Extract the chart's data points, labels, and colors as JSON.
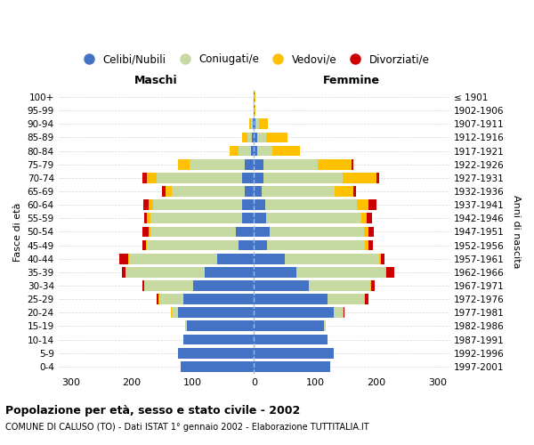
{
  "age_groups": [
    "0-4",
    "5-9",
    "10-14",
    "15-19",
    "20-24",
    "25-29",
    "30-34",
    "35-39",
    "40-44",
    "45-49",
    "50-54",
    "55-59",
    "60-64",
    "65-69",
    "70-74",
    "75-79",
    "80-84",
    "85-89",
    "90-94",
    "95-99",
    "100+"
  ],
  "birth_years": [
    "1997-2001",
    "1992-1996",
    "1987-1991",
    "1982-1986",
    "1977-1981",
    "1972-1976",
    "1967-1971",
    "1962-1966",
    "1957-1961",
    "1952-1956",
    "1947-1951",
    "1942-1946",
    "1937-1941",
    "1932-1936",
    "1927-1931",
    "1922-1926",
    "1917-1921",
    "1912-1916",
    "1907-1911",
    "1902-1906",
    "≤ 1901"
  ],
  "male_celibe": [
    120,
    125,
    115,
    110,
    125,
    115,
    100,
    80,
    60,
    25,
    30,
    20,
    20,
    15,
    20,
    15,
    5,
    3,
    2,
    1,
    1
  ],
  "male_coniugato": [
    0,
    0,
    0,
    2,
    10,
    40,
    80,
    130,
    145,
    150,
    140,
    150,
    145,
    120,
    140,
    90,
    20,
    8,
    3,
    0,
    0
  ],
  "male_vedovo": [
    0,
    0,
    0,
    0,
    1,
    2,
    0,
    1,
    1,
    2,
    3,
    5,
    8,
    10,
    15,
    20,
    15,
    8,
    3,
    0,
    0
  ],
  "male_divorziato": [
    0,
    0,
    0,
    0,
    0,
    2,
    3,
    5,
    15,
    5,
    10,
    5,
    8,
    5,
    8,
    0,
    0,
    0,
    0,
    0,
    0
  ],
  "female_celibe": [
    125,
    130,
    120,
    115,
    130,
    120,
    90,
    70,
    50,
    22,
    25,
    20,
    18,
    12,
    15,
    15,
    5,
    5,
    3,
    1,
    1
  ],
  "female_coniugato": [
    0,
    0,
    0,
    3,
    15,
    60,
    100,
    145,
    155,
    160,
    155,
    155,
    150,
    120,
    130,
    90,
    25,
    15,
    5,
    0,
    0
  ],
  "female_vedovo": [
    0,
    0,
    0,
    0,
    1,
    2,
    2,
    2,
    3,
    5,
    8,
    10,
    20,
    30,
    55,
    55,
    45,
    35,
    15,
    1,
    1
  ],
  "female_divorziato": [
    0,
    0,
    0,
    0,
    2,
    5,
    5,
    12,
    5,
    8,
    8,
    8,
    12,
    5,
    5,
    3,
    0,
    0,
    0,
    0,
    0
  ],
  "color_celibe": "#4472c4",
  "color_coniugato": "#c5d9a0",
  "color_vedovo": "#ffc000",
  "color_divorziato": "#cc0000",
  "title": "Popolazione per età, sesso e stato civile - 2002",
  "subtitle": "COMUNE DI CALUSO (TO) - Dati ISTAT 1° gennaio 2002 - Elaborazione TUTTITALIA.IT",
  "xlabel_left": "Maschi",
  "xlabel_right": "Femmine",
  "ylabel_left": "Fasce di età",
  "ylabel_right": "Anni di nascita",
  "xlim": 320,
  "legend_labels": [
    "Celibi/Nubili",
    "Coniugati/e",
    "Vedovi/e",
    "Divorziati/e"
  ]
}
